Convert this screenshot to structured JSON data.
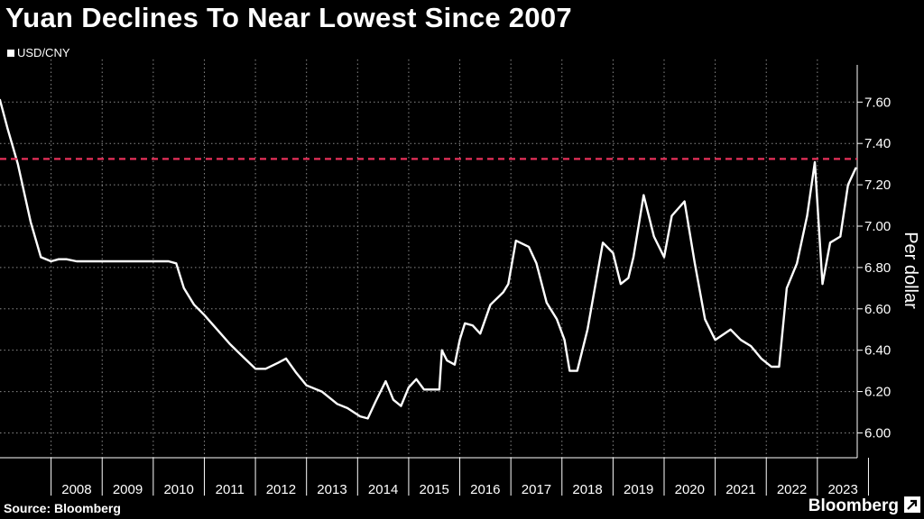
{
  "title": "Yuan Declines To Near Lowest Since 2007",
  "source": "Source: Bloomberg",
  "brand": "Bloomberg",
  "colors": {
    "background": "#000000",
    "line": "#ffffff",
    "reference": "#e8305a",
    "grid": "#8a8a8a"
  },
  "chart_data": {
    "type": "line",
    "title": "Yuan Declines To Near Lowest Since 2007",
    "ylabel": "Per dollar",
    "xlabel": "",
    "ylim": [
      5.88,
      7.78
    ],
    "xlim": [
      2007.0,
      2023.78
    ],
    "y_ticks": [
      "7.60",
      "7.40",
      "7.20",
      "7.00",
      "6.80",
      "6.60",
      "6.40",
      "6.20",
      "6.00"
    ],
    "y_tick_values": [
      7.6,
      7.4,
      7.2,
      7.0,
      6.8,
      6.6,
      6.4,
      6.2,
      6.0
    ],
    "x_ticks": [
      "2008",
      "2009",
      "2010",
      "2011",
      "2012",
      "2013",
      "2014",
      "2015",
      "2016",
      "2017",
      "2018",
      "2019",
      "2020",
      "2021",
      "2022",
      "2023"
    ],
    "grid": true,
    "legend": "top-left",
    "reference_line": {
      "y": 7.325,
      "style": "dashed"
    },
    "series": [
      {
        "name": "USD/CNY",
        "x": [
          2007.0,
          2007.15,
          2007.35,
          2007.6,
          2007.8,
          2008.0,
          2008.15,
          2008.3,
          2008.5,
          2008.7,
          2008.9,
          2009.2,
          2009.5,
          2009.8,
          2010.0,
          2010.3,
          2010.45,
          2010.6,
          2010.8,
          2011.0,
          2011.25,
          2011.5,
          2011.75,
          2012.0,
          2012.2,
          2012.45,
          2012.6,
          2012.8,
          2013.0,
          2013.3,
          2013.6,
          2013.8,
          2014.05,
          2014.2,
          2014.35,
          2014.55,
          2014.7,
          2014.85,
          2015.0,
          2015.15,
          2015.3,
          2015.6,
          2015.65,
          2015.75,
          2015.9,
          2016.0,
          2016.1,
          2016.25,
          2016.4,
          2016.6,
          2016.85,
          2016.95,
          2017.1,
          2017.35,
          2017.5,
          2017.7,
          2017.9,
          2018.05,
          2018.15,
          2018.3,
          2018.5,
          2018.8,
          2019.0,
          2019.15,
          2019.3,
          2019.4,
          2019.6,
          2019.7,
          2019.8,
          2020.0,
          2020.15,
          2020.4,
          2020.6,
          2020.8,
          2021.0,
          2021.3,
          2021.5,
          2021.7,
          2021.9,
          2022.1,
          2022.25,
          2022.4,
          2022.6,
          2022.8,
          2022.95,
          2023.1,
          2023.25,
          2023.45,
          2023.6,
          2023.75
        ],
        "y": [
          7.61,
          7.47,
          7.3,
          7.02,
          6.85,
          6.83,
          6.84,
          6.84,
          6.83,
          6.83,
          6.83,
          6.83,
          6.83,
          6.83,
          6.83,
          6.83,
          6.82,
          6.7,
          6.62,
          6.57,
          6.5,
          6.43,
          6.37,
          6.31,
          6.31,
          6.34,
          6.36,
          6.29,
          6.23,
          6.2,
          6.14,
          6.12,
          6.08,
          6.07,
          6.15,
          6.25,
          6.16,
          6.13,
          6.22,
          6.26,
          6.21,
          6.21,
          6.4,
          6.35,
          6.33,
          6.45,
          6.53,
          6.52,
          6.48,
          6.62,
          6.68,
          6.72,
          6.93,
          6.9,
          6.82,
          6.63,
          6.55,
          6.45,
          6.3,
          6.3,
          6.5,
          6.92,
          6.87,
          6.72,
          6.75,
          6.85,
          7.15,
          7.05,
          6.95,
          6.85,
          7.05,
          7.12,
          6.82,
          6.55,
          6.45,
          6.5,
          6.45,
          6.42,
          6.36,
          6.32,
          6.32,
          6.7,
          6.82,
          7.05,
          7.31,
          6.72,
          6.92,
          6.95,
          7.2,
          7.28
        ]
      }
    ]
  }
}
